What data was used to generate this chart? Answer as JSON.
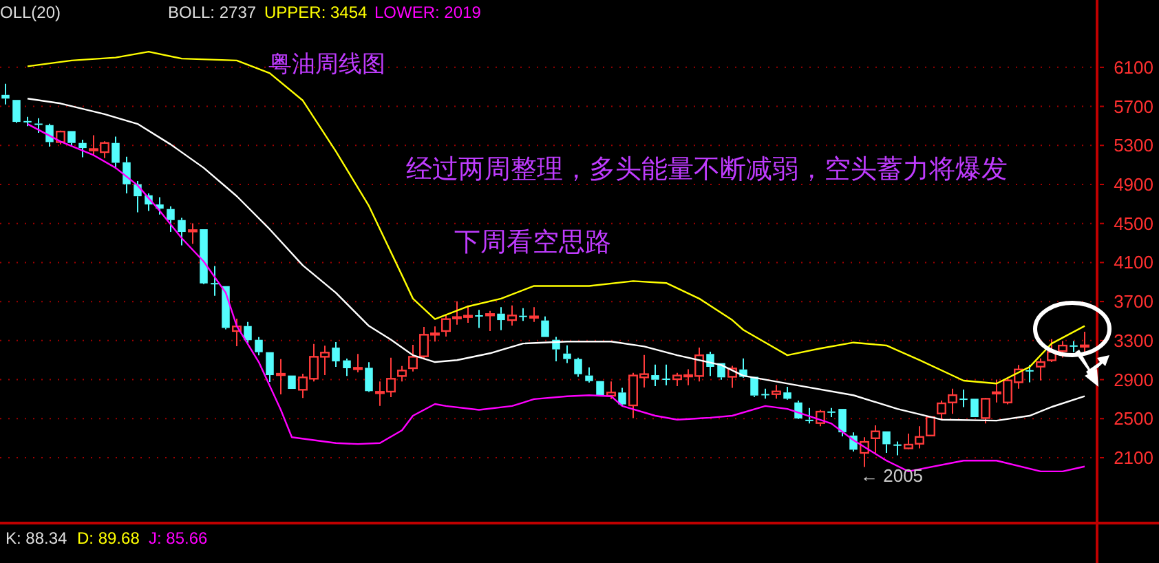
{
  "chart_data": {
    "type": "candlestick",
    "title": "粤油周线图",
    "categories": [
      null,
      null,
      null,
      null,
      null,
      null,
      null,
      null,
      null,
      null,
      null,
      null,
      null,
      null,
      null,
      null,
      null,
      null,
      null,
      null,
      null,
      null,
      null,
      null,
      null,
      null,
      null,
      null,
      null,
      null,
      null,
      null,
      null,
      null,
      null,
      null,
      null,
      null,
      null,
      null,
      null,
      null,
      null,
      null,
      null,
      null,
      null,
      null,
      null,
      null,
      null,
      null,
      null,
      null,
      null,
      null,
      null,
      null,
      null,
      null,
      null,
      null,
      null,
      null,
      null,
      null,
      null,
      null,
      null,
      null,
      null,
      null,
      null,
      null,
      null,
      null,
      null,
      null,
      null,
      null,
      null,
      null,
      null,
      null,
      null,
      null,
      null,
      null,
      null,
      null,
      null,
      null,
      null,
      null,
      null,
      null,
      null,
      null,
      null
    ],
    "ohlc": [
      [
        5818,
        5931,
        5719,
        5780
      ],
      [
        5766,
        5766,
        5531,
        5541
      ],
      [
        5550,
        5592,
        5498,
        5545
      ],
      [
        5524,
        5578,
        5428,
        5520
      ],
      [
        5508,
        5522,
        5287,
        5334
      ],
      [
        5334,
        5451,
        5310,
        5442
      ],
      [
        5447,
        5447,
        5287,
        5325
      ],
      [
        5325,
        5358,
        5179,
        5273
      ],
      [
        5259,
        5404,
        5193,
        5263
      ],
      [
        5231,
        5343,
        5170,
        5325
      ],
      [
        5325,
        5390,
        5061,
        5122
      ],
      [
        5127,
        5184,
        4808,
        4902
      ],
      [
        4902,
        4935,
        4615,
        4779
      ],
      [
        4789,
        4808,
        4629,
        4695
      ],
      [
        4695,
        4770,
        4591,
        4652
      ],
      [
        4648,
        4676,
        4413,
        4535
      ],
      [
        4535,
        4558,
        4276,
        4413
      ],
      [
        4427,
        4502,
        4291,
        4432
      ],
      [
        4441,
        4441,
        3877,
        3886
      ],
      [
        3890,
        4065,
        3760,
        3886
      ],
      [
        3858,
        3858,
        3416,
        3430
      ],
      [
        3398,
        3525,
        3243,
        3445
      ],
      [
        3449,
        3492,
        3275,
        3304
      ],
      [
        3308,
        3336,
        3149,
        3181
      ],
      [
        3181,
        3181,
        2876,
        2946
      ],
      [
        2956,
        3111,
        2749,
        2960
      ],
      [
        2942,
        2942,
        2805,
        2805
      ],
      [
        2796,
        2960,
        2711,
        2923
      ],
      [
        2909,
        3266,
        2881,
        3134
      ],
      [
        3134,
        3247,
        2946,
        3177
      ],
      [
        3228,
        3285,
        3031,
        3087
      ],
      [
        3097,
        3116,
        2937,
        3017
      ],
      [
        3019,
        3163,
        2975,
        3021
      ],
      [
        3021,
        3078,
        2773,
        2782
      ],
      [
        2770,
        2881,
        2631,
        2775
      ],
      [
        2777,
        3125,
        2721,
        2909
      ],
      [
        2937,
        3040,
        2881,
        2993
      ],
      [
        3017,
        3257,
        2984,
        3134
      ],
      [
        3139,
        3440,
        3106,
        3360
      ],
      [
        3370,
        3445,
        3290,
        3374
      ],
      [
        3398,
        3567,
        3341,
        3520
      ],
      [
        3537,
        3703,
        3463,
        3541
      ],
      [
        3550,
        3661,
        3482,
        3555
      ],
      [
        3560,
        3614,
        3430,
        3557
      ],
      [
        3570,
        3604,
        3398,
        3572
      ],
      [
        3576,
        3642,
        3407,
        3510
      ],
      [
        3510,
        3661,
        3454,
        3557
      ],
      [
        3555,
        3633,
        3501,
        3550
      ],
      [
        3546,
        3642,
        3492,
        3548
      ],
      [
        3506,
        3548,
        3337,
        3337
      ],
      [
        3308,
        3337,
        3087,
        3210
      ],
      [
        3167,
        3252,
        3069,
        3111
      ],
      [
        3111,
        3125,
        2928,
        2956
      ],
      [
        2942,
        3026,
        2871,
        2885
      ],
      [
        2885,
        2885,
        2740,
        2740
      ],
      [
        2735,
        2881,
        2702,
        2768
      ],
      [
        2768,
        2815,
        2631,
        2646
      ],
      [
        2636,
        2970,
        2505,
        2942
      ],
      [
        2923,
        3153,
        2819,
        2956
      ],
      [
        2946,
        3054,
        2834,
        2899
      ],
      [
        2911,
        3054,
        2843,
        2909
      ],
      [
        2904,
        2970,
        2834,
        2942
      ],
      [
        2944,
        3007,
        2843,
        2946
      ],
      [
        2937,
        3228,
        2881,
        3149
      ],
      [
        3163,
        3186,
        2937,
        3031
      ],
      [
        3069,
        3069,
        2899,
        2923
      ],
      [
        2929,
        3042,
        2816,
        3014
      ],
      [
        3004,
        3117,
        2920,
        2929
      ],
      [
        2929,
        2929,
        2722,
        2737
      ],
      [
        2753,
        2807,
        2704,
        2751
      ],
      [
        2751,
        2845,
        2704,
        2779
      ],
      [
        2769,
        2826,
        2694,
        2704
      ],
      [
        2666,
        2685,
        2497,
        2502
      ],
      [
        2489,
        2610,
        2450,
        2487
      ],
      [
        2455,
        2591,
        2422,
        2572
      ],
      [
        2574,
        2610,
        2516,
        2572
      ],
      [
        2600,
        2600,
        2318,
        2360
      ],
      [
        2327,
        2360,
        2163,
        2182
      ],
      [
        2149,
        2309,
        2005,
        2262
      ],
      [
        2299,
        2431,
        2149,
        2370
      ],
      [
        2370,
        2370,
        2149,
        2238
      ],
      [
        2236,
        2266,
        2125,
        2234
      ],
      [
        2196,
        2346,
        2187,
        2234
      ],
      [
        2243,
        2422,
        2196,
        2313
      ],
      [
        2327,
        2525,
        2318,
        2516
      ],
      [
        2553,
        2685,
        2487,
        2657
      ],
      [
        2666,
        2807,
        2549,
        2741
      ],
      [
        2706,
        2798,
        2619,
        2704
      ],
      [
        2704,
        2704,
        2516,
        2516
      ],
      [
        2506,
        2713,
        2450,
        2704
      ],
      [
        2767,
        2901,
        2666,
        2771
      ],
      [
        2666,
        2910,
        2647,
        2892
      ],
      [
        2873,
        3051,
        2807,
        3004
      ],
      [
        2997,
        3051,
        2873,
        2995
      ],
      [
        3033,
        3117,
        2892,
        3080
      ],
      [
        3098,
        3315,
        3080,
        3183
      ],
      [
        3192,
        3296,
        3127,
        3249
      ],
      [
        3251,
        3296,
        3183,
        3249
      ],
      [
        3247,
        3390,
        3155,
        3251
      ]
    ],
    "series": [
      {
        "type": "line",
        "color": "#ffff00",
        "values": [
          null,
          null,
          6110,
          null,
          null,
          null,
          6170,
          null,
          null,
          null,
          6200,
          null,
          null,
          6260,
          null,
          null,
          6190,
          null,
          null,
          null,
          null,
          6170,
          null,
          null,
          6040,
          null,
          null,
          5760,
          null,
          null,
          5240,
          null,
          null,
          4680,
          null,
          null,
          3970,
          3730,
          null,
          3520,
          null,
          null,
          3650,
          null,
          null,
          3730,
          null,
          null,
          3860,
          null,
          null,
          null,
          null,
          3860,
          null,
          null,
          null,
          3910,
          null,
          null,
          3890,
          null,
          null,
          3730,
          null,
          null,
          3510,
          3410,
          null,
          null,
          null,
          3150,
          null,
          null,
          3220,
          null,
          null,
          3280,
          null,
          null,
          3250,
          null,
          null,
          3100,
          null,
          null,
          null,
          2890,
          null,
          null,
          2860,
          null,
          null,
          3030,
          null,
          3270,
          null,
          null,
          3450
        ]
      },
      {
        "type": "line",
        "color": "#ffffff",
        "values": [
          null,
          null,
          5780,
          null,
          null,
          5730,
          null,
          null,
          null,
          5620,
          null,
          null,
          5520,
          null,
          null,
          5310,
          null,
          null,
          5070,
          null,
          null,
          4780,
          null,
          null,
          4440,
          null,
          null,
          4070,
          null,
          null,
          3790,
          null,
          null,
          3450,
          null,
          3310,
          null,
          3150,
          null,
          3080,
          null,
          3100,
          null,
          null,
          3170,
          null,
          null,
          3270,
          null,
          null,
          null,
          3290,
          null,
          null,
          null,
          3290,
          null,
          null,
          3240,
          null,
          null,
          3150,
          null,
          null,
          null,
          3050,
          null,
          2940,
          null,
          null,
          null,
          null,
          2840,
          null,
          null,
          null,
          null,
          2740,
          null,
          null,
          null,
          2600,
          null,
          null,
          null,
          2490,
          null,
          null,
          null,
          null,
          2480,
          null,
          null,
          2530,
          null,
          2620,
          null,
          null,
          2730
        ]
      },
      {
        "type": "line",
        "color": "#ff00ff",
        "values": [
          null,
          null,
          5520,
          null,
          null,
          5340,
          null,
          null,
          5200,
          null,
          5070,
          null,
          4890,
          null,
          4630,
          null,
          4350,
          null,
          4110,
          null,
          3790,
          3450,
          null,
          3080,
          null,
          2590,
          2310,
          null,
          null,
          null,
          2250,
          null,
          2240,
          null,
          2250,
          null,
          2380,
          2530,
          null,
          2650,
          2630,
          null,
          null,
          2590,
          null,
          null,
          2630,
          null,
          2700,
          null,
          null,
          2730,
          null,
          2740,
          null,
          2730,
          2630,
          null,
          null,
          2530,
          null,
          2490,
          null,
          null,
          2510,
          null,
          2530,
          null,
          null,
          2630,
          null,
          2600,
          null,
          null,
          null,
          2450,
          null,
          2280,
          null,
          null,
          2070,
          null,
          1960,
          null,
          null,
          null,
          null,
          2070,
          null,
          null,
          2070,
          null,
          null,
          null,
          1960,
          null,
          1960,
          null,
          2010
        ]
      }
    ],
    "ylim": [
      1430,
      6790
    ],
    "yticks": [
      2100,
      2500,
      2900,
      3300,
      3700,
      4100,
      4500,
      4900,
      5300,
      5700,
      6100
    ],
    "grid": "y",
    "tick_labels": "y",
    "annotations": [
      "OLL(20)",
      "BOLL: 2737",
      "UPPER: 3454",
      "LOWER: 2019",
      "K: 88.34",
      "D: 89.68",
      "J: 85.66",
      "经过两周整理，多头能量不断减弱，空头蓄力将爆发",
      "下周看空思路",
      {
        "text": "← 2005",
        "y": 2005
      }
    ]
  }
}
